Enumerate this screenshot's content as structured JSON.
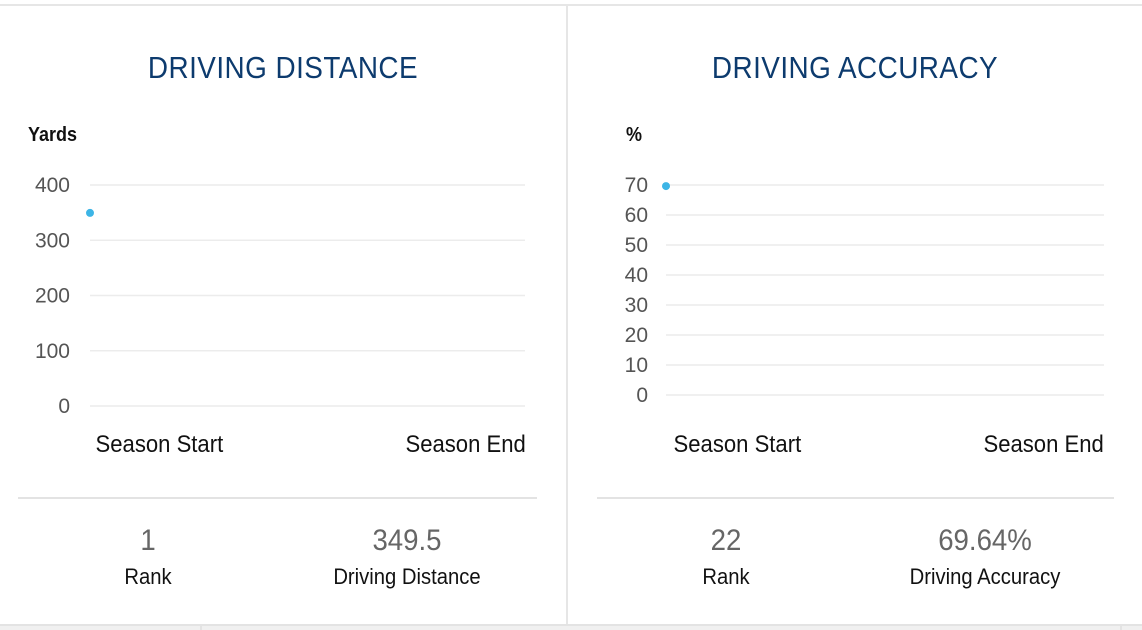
{
  "colors": {
    "title": "#0d3b6e",
    "point": "#3db5e6",
    "grid": "#ececec"
  },
  "chart_data": [
    {
      "type": "scatter",
      "title": "DRIVING DISTANCE",
      "ylabel": "Yards",
      "ylim": [
        0,
        400
      ],
      "yticks": [
        400,
        300,
        200,
        100,
        0
      ],
      "xlabels": [
        "Season Start",
        "Season End"
      ],
      "series": [
        {
          "points": [
            {
              "x": "Season Start",
              "y": 349.5
            }
          ]
        }
      ],
      "grid": true,
      "stats": [
        {
          "value": "1",
          "label": "Rank"
        },
        {
          "value": "349.5",
          "label": "Driving Distance"
        }
      ]
    },
    {
      "type": "scatter",
      "title": "DRIVING ACCURACY",
      "ylabel": "%",
      "ylim": [
        0,
        70
      ],
      "yticks": [
        70,
        60,
        50,
        40,
        30,
        20,
        10,
        0
      ],
      "xlabels": [
        "Season Start",
        "Season End"
      ],
      "series": [
        {
          "points": [
            {
              "x": "Season Start",
              "y": 69.64
            }
          ]
        }
      ],
      "grid": true,
      "stats": [
        {
          "value": "22",
          "label": "Rank"
        },
        {
          "value": "69.64%",
          "label": "Driving Accuracy"
        }
      ]
    }
  ]
}
